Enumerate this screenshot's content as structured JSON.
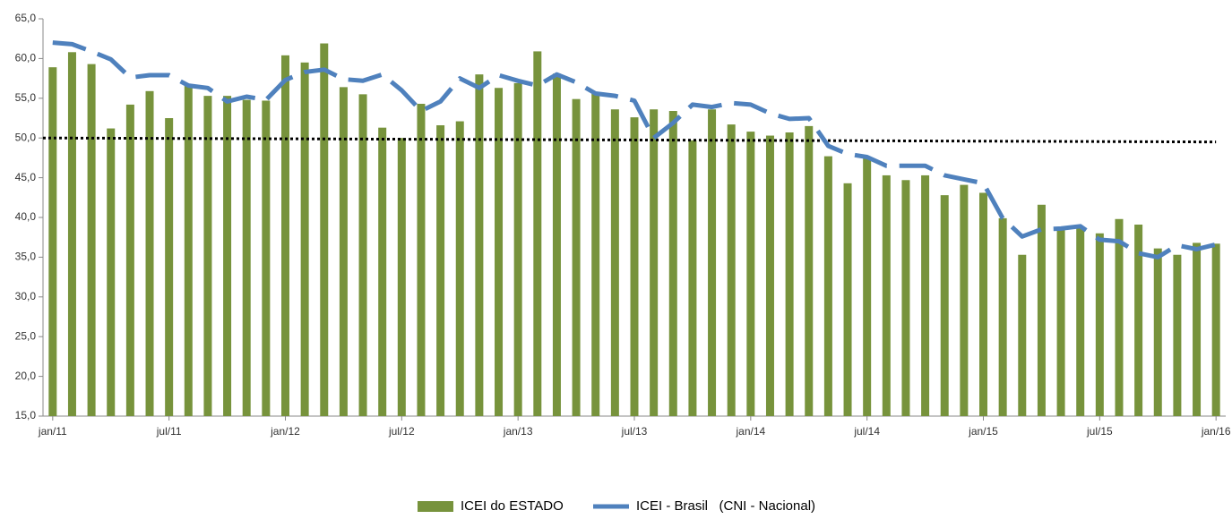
{
  "chart_data": {
    "type": "bar_line",
    "categories": [
      "jan/11",
      null,
      null,
      null,
      null,
      null,
      "jul/11",
      null,
      null,
      null,
      null,
      null,
      "jan/12",
      null,
      null,
      null,
      null,
      null,
      "jul/12",
      null,
      null,
      null,
      null,
      null,
      "jan/13",
      null,
      null,
      null,
      null,
      null,
      "jul/13",
      null,
      null,
      null,
      null,
      null,
      "jan/14",
      null,
      null,
      null,
      null,
      null,
      "jul/14",
      null,
      null,
      null,
      null,
      null,
      "jan/15",
      null,
      null,
      null,
      null,
      null,
      "jul/15",
      null,
      null,
      null,
      null,
      null,
      "jan/16"
    ],
    "series": [
      {
        "name": "ICEI do ESTADO",
        "kind": "bar",
        "color": "#77933c",
        "values": [
          58.9,
          60.8,
          59.3,
          51.2,
          54.2,
          55.9,
          52.5,
          56.6,
          55.3,
          55.3,
          54.8,
          54.7,
          60.4,
          59.5,
          61.9,
          56.4,
          55.5,
          51.3,
          50.0,
          54.3,
          51.6,
          52.1,
          58.0,
          56.3,
          56.9,
          60.9,
          58.1,
          54.9,
          55.6,
          53.6,
          52.6,
          53.6,
          53.4,
          49.7,
          53.6,
          51.7,
          50.8,
          50.3,
          50.7,
          51.5,
          47.7,
          44.3,
          47.6,
          45.3,
          44.7,
          45.3,
          42.8,
          44.1,
          43.1,
          39.9,
          35.3,
          41.6,
          38.5,
          38.8,
          38.0,
          39.8,
          39.1,
          36.1,
          35.3,
          36.8,
          36.7
        ]
      },
      {
        "name": "ICEI - Brasil   (CNI - Nacional)",
        "kind": "line",
        "color": "#4f81bd",
        "values": [
          62.0,
          61.8,
          60.9,
          59.9,
          57.6,
          57.9,
          57.9,
          56.6,
          56.3,
          54.6,
          55.2,
          54.8,
          57.3,
          58.3,
          58.6,
          57.4,
          57.2,
          58.0,
          56.0,
          53.4,
          54.6,
          57.5,
          56.3,
          57.9,
          57.2,
          56.6,
          58.0,
          57.0,
          55.6,
          55.3,
          54.7,
          50.0,
          51.9,
          54.2,
          53.9,
          54.4,
          54.2,
          53.1,
          52.4,
          52.5,
          49.0,
          48.0,
          47.6,
          46.5,
          46.5,
          46.5,
          45.3,
          44.8,
          44.3,
          39.9,
          37.6,
          38.5,
          38.6,
          38.9,
          37.2,
          37.0,
          35.5,
          35.0,
          36.5,
          36.0,
          36.6
        ]
      }
    ],
    "trend_line": [
      50.0,
      49.5
    ],
    "ylim": [
      15,
      65
    ],
    "yticks": [
      {
        "value": 15,
        "label": "15,0"
      },
      {
        "value": 20,
        "label": "20,0"
      },
      {
        "value": 25,
        "label": "25,0"
      },
      {
        "value": 30,
        "label": "30,0"
      },
      {
        "value": 35,
        "label": "35,0"
      },
      {
        "value": 40,
        "label": "40,0"
      },
      {
        "value": 45,
        "label": "45,0"
      },
      {
        "value": 50,
        "label": "50,0"
      },
      {
        "value": 55,
        "label": "55,0"
      },
      {
        "value": 60,
        "label": "60,0"
      },
      {
        "value": 65,
        "label": "65,0"
      }
    ],
    "grid": false,
    "legend": "bottom"
  }
}
